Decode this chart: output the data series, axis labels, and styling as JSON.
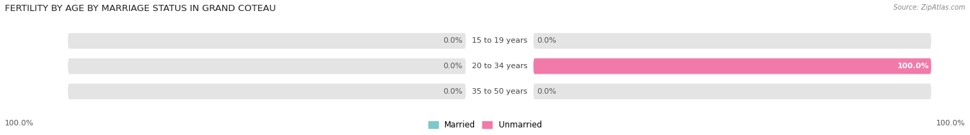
{
  "title": "FERTILITY BY AGE BY MARRIAGE STATUS IN GRAND COTEAU",
  "source": "Source: ZipAtlas.com",
  "age_groups": [
    "15 to 19 years",
    "20 to 34 years",
    "35 to 50 years"
  ],
  "married_values": [
    0.0,
    0.0,
    0.0
  ],
  "unmarried_values": [
    0.0,
    100.0,
    0.0
  ],
  "married_left_labels": [
    "0.0%",
    "0.0%",
    "0.0%"
  ],
  "unmarried_right_labels": [
    "0.0%",
    "100.0%",
    "0.0%"
  ],
  "left_axis_label": "100.0%",
  "right_axis_label": "100.0%",
  "married_color": "#7dc8c8",
  "unmarried_color": "#f27aaa",
  "bar_bg_color": "#e4e4e4",
  "figsize": [
    14.06,
    1.96
  ],
  "dpi": 100,
  "title_fontsize": 9.5,
  "label_fontsize": 8,
  "legend_fontsize": 8.5,
  "axis_label_fontsize": 8
}
